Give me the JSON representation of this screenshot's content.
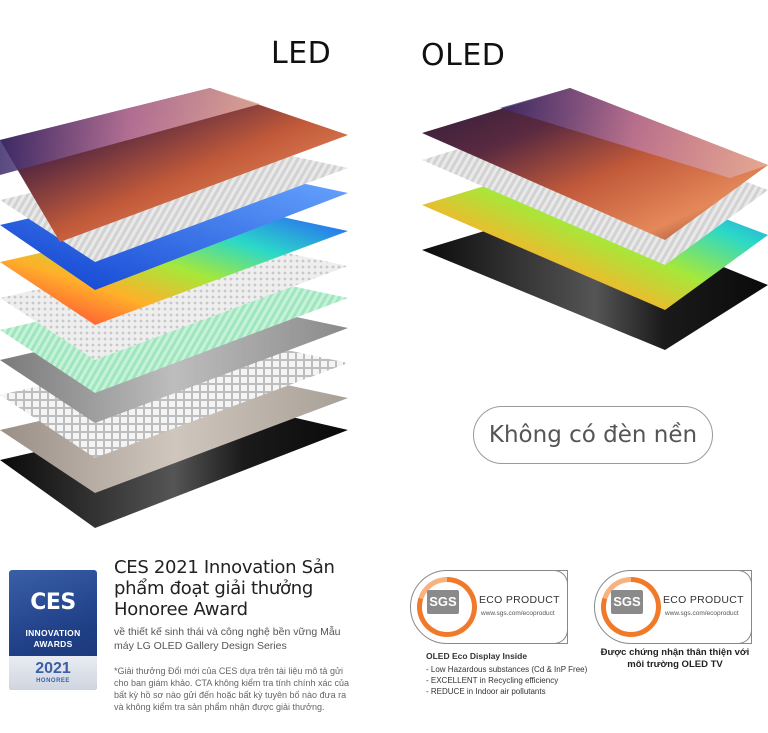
{
  "headings": {
    "led": "LED",
    "oled": "OLED"
  },
  "no_backlight_label": "Không có đèn nền",
  "ces": {
    "badge": {
      "logo": "CES",
      "line1": "INNOVATION",
      "line2": "AWARDS",
      "year": "2021",
      "honoree": "HONOREE"
    },
    "title": "CES 2021 Innovation Sản phẩm đoạt giải thưởng Honoree Award",
    "subtitle": "về thiết kế sinh thái và công nghệ bền vững Mẫu máy LG OLED Gallery Design Series",
    "footnote": "*Giải thưởng Đổi mới của CES dựa trên tài liệu mô tả gửi cho ban giám khảo. CTA không kiểm tra tính chính xác của bất kỳ hồ sơ nào gửi đến hoặc bất kỳ tuyên bố nào đưa ra và không kiểm tra sản phẩm nhận được giải thưởng."
  },
  "sgs_left": {
    "logo": "SGS",
    "label": "ECO PRODUCT",
    "url": "www.sgs.com/ecoproduct",
    "caption_title": "OLED Eco Display Inside",
    "caption_lines": [
      "- Low Hazardous substances (Cd & InP Free)",
      "- EXCELLENT in Recycling efficiency",
      "- REDUCE in Indoor air pollutants"
    ]
  },
  "sgs_right": {
    "logo": "SGS",
    "label": "ECO PRODUCT",
    "url": "www.sgs.com/ecoproduct",
    "caption": "Được chứng nhận thân thiện với môi trường OLED TV"
  },
  "colors": {
    "sgs_orange": "#f07a2a",
    "ces_blue": "#2b4f9a"
  }
}
